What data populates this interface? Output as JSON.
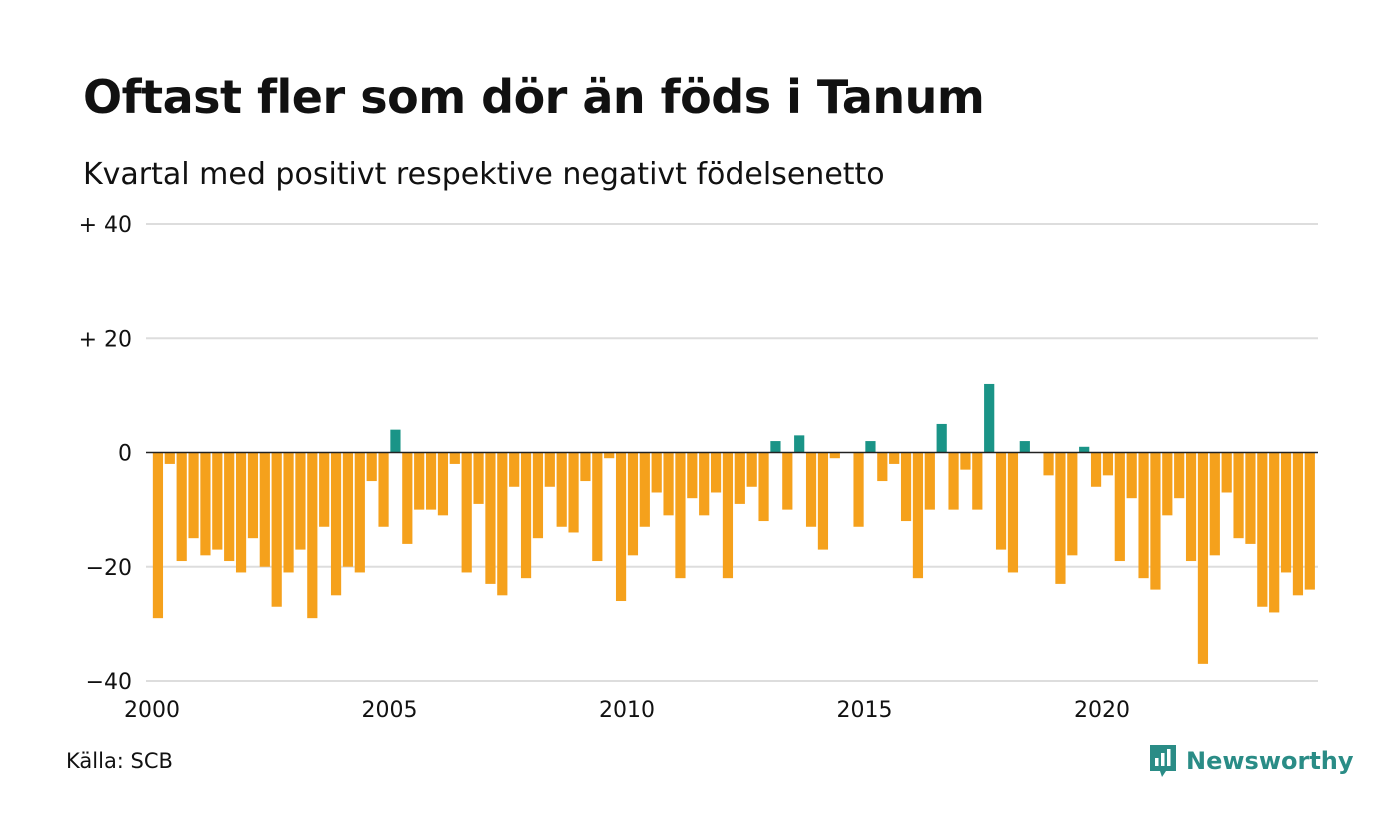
{
  "header": {
    "title": "Oftast fler som dör än föds i Tanum",
    "subtitle": "Kvartal med positivt respektive negativt födelsenetto"
  },
  "footer": {
    "source": "Källa: SCB",
    "brand": "Newsworthy",
    "brand_icon": "bar-chart-speech-bubble-icon"
  },
  "colors": {
    "positive": "#1a9487",
    "negative": "#f5a11c",
    "gridline": "#dddddd",
    "zero_line": "#222222",
    "brand": "#2a8c86"
  },
  "chart_data": {
    "type": "bar",
    "title": "Oftast fler som dör än föds i Tanum",
    "subtitle": "Kvartal med positivt respektive negativt födelsenetto",
    "xlabel": "",
    "ylabel": "",
    "ylim": [
      -40,
      40
    ],
    "y_ticks": [
      {
        "value": 40,
        "label": "+ 40"
      },
      {
        "value": 20,
        "label": "+ 20"
      },
      {
        "value": 0,
        "label": "0"
      },
      {
        "value": -20,
        "label": "−20"
      },
      {
        "value": -40,
        "label": "−40"
      }
    ],
    "x_ticks": [
      {
        "year": 2000,
        "label": "2000"
      },
      {
        "year": 2005,
        "label": "2005"
      },
      {
        "year": 2010,
        "label": "2010"
      },
      {
        "year": 2015,
        "label": "2015"
      },
      {
        "year": 2020,
        "label": "2020"
      }
    ],
    "grid": true,
    "start": "2000 Q1",
    "end": "2024 Q2",
    "categories": [
      "2000 Q1",
      "2000 Q2",
      "2000 Q3",
      "2000 Q4",
      "2001 Q1",
      "2001 Q2",
      "2001 Q3",
      "2001 Q4",
      "2002 Q1",
      "2002 Q2",
      "2002 Q3",
      "2002 Q4",
      "2003 Q1",
      "2003 Q2",
      "2003 Q3",
      "2003 Q4",
      "2004 Q1",
      "2004 Q2",
      "2004 Q3",
      "2004 Q4",
      "2005 Q1",
      "2005 Q2",
      "2005 Q3",
      "2005 Q4",
      "2006 Q1",
      "2006 Q2",
      "2006 Q3",
      "2006 Q4",
      "2007 Q1",
      "2007 Q2",
      "2007 Q3",
      "2007 Q4",
      "2008 Q1",
      "2008 Q2",
      "2008 Q3",
      "2008 Q4",
      "2009 Q1",
      "2009 Q2",
      "2009 Q3",
      "2009 Q4",
      "2010 Q1",
      "2010 Q2",
      "2010 Q3",
      "2010 Q4",
      "2011 Q1",
      "2011 Q2",
      "2011 Q3",
      "2011 Q4",
      "2012 Q1",
      "2012 Q2",
      "2012 Q3",
      "2012 Q4",
      "2013 Q1",
      "2013 Q2",
      "2013 Q3",
      "2013 Q4",
      "2014 Q1",
      "2014 Q2",
      "2014 Q3",
      "2014 Q4",
      "2015 Q1",
      "2015 Q2",
      "2015 Q3",
      "2015 Q4",
      "2016 Q1",
      "2016 Q2",
      "2016 Q3",
      "2016 Q4",
      "2017 Q1",
      "2017 Q2",
      "2017 Q3",
      "2017 Q4",
      "2018 Q1",
      "2018 Q2",
      "2018 Q3",
      "2018 Q4",
      "2019 Q1",
      "2019 Q2",
      "2019 Q3",
      "2019 Q4",
      "2020 Q1",
      "2020 Q2",
      "2020 Q3",
      "2020 Q4",
      "2021 Q1",
      "2021 Q2",
      "2021 Q3",
      "2021 Q4",
      "2022 Q1",
      "2022 Q2",
      "2022 Q3",
      "2022 Q4",
      "2023 Q1",
      "2023 Q2",
      "2023 Q3",
      "2023 Q4",
      "2024 Q1",
      "2024 Q2"
    ],
    "values": [
      -29,
      -2,
      -19,
      -15,
      -18,
      -17,
      -19,
      -21,
      -15,
      -20,
      -27,
      -21,
      -17,
      -29,
      -13,
      -25,
      -20,
      -21,
      -5,
      -13,
      4,
      -16,
      -10,
      -10,
      -11,
      -2,
      -21,
      -9,
      -23,
      -25,
      -6,
      -22,
      -15,
      -6,
      -13,
      -14,
      -5,
      -19,
      -1,
      -26,
      -18,
      -13,
      -7,
      -11,
      -22,
      -8,
      -11,
      -7,
      -22,
      -9,
      -6,
      -12,
      2,
      -10,
      3,
      -13,
      -17,
      -1,
      0,
      -13,
      2,
      -5,
      -2,
      -12,
      -22,
      -10,
      5,
      -10,
      -3,
      -10,
      12,
      -17,
      -21,
      2,
      0,
      -4,
      -23,
      -18,
      1,
      -6,
      -4,
      -19,
      -8,
      -22,
      -24,
      -11,
      -8,
      -19,
      -37,
      -18,
      -7,
      -15,
      -16,
      -27,
      -28,
      -21,
      -25,
      -24
    ]
  }
}
